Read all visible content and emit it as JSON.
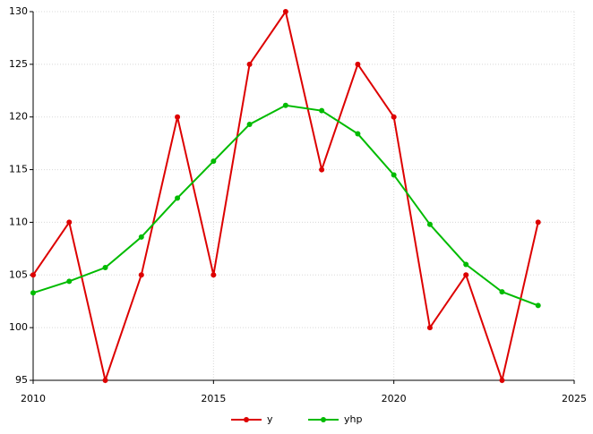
{
  "chart_data": {
    "type": "line",
    "x": [
      2010,
      2011,
      2012,
      2013,
      2014,
      2015,
      2016,
      2017,
      2018,
      2019,
      2020,
      2021,
      2022,
      2023,
      2024
    ],
    "series": [
      {
        "name": "y",
        "color": "#dd0000",
        "values": [
          105,
          110,
          95,
          105,
          120,
          105,
          125,
          130,
          115,
          125,
          120,
          100,
          105,
          95,
          110
        ]
      },
      {
        "name": "yhp",
        "color": "#00bb00",
        "values": [
          103.3,
          104.4,
          105.7,
          108.6,
          112.3,
          115.8,
          119.3,
          121.1,
          120.6,
          118.4,
          114.5,
          109.8,
          106.0,
          103.4,
          102.1
        ]
      }
    ],
    "xlim": [
      2010,
      2025
    ],
    "xticks": [
      2010,
      2015,
      2020,
      2025
    ],
    "ylim": [
      95,
      130
    ],
    "yticks": [
      95,
      100,
      105,
      110,
      115,
      120,
      125,
      130
    ],
    "grid": true,
    "legend": "bottom"
  }
}
